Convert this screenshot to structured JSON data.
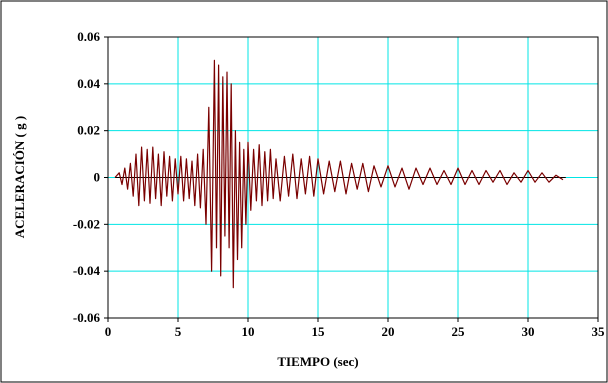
{
  "chart_data": {
    "type": "line",
    "title": "",
    "xlabel": "TIEMPO (sec)",
    "ylabel": "ACELERACIÓN ( g )",
    "xlim": [
      0,
      35
    ],
    "ylim": [
      -0.06,
      0.06
    ],
    "xticks": [
      0,
      5,
      10,
      15,
      20,
      25,
      30,
      35
    ],
    "yticks": [
      -0.06,
      -0.04,
      -0.02,
      0,
      0.02,
      0.04,
      0.06
    ],
    "xtick_labels": [
      "0",
      "5",
      "10",
      "15",
      "20",
      "25",
      "30",
      "35"
    ],
    "ytick_labels": [
      "-0.06",
      "-0.04",
      "-0.02",
      "0",
      "0.02",
      "0.04",
      "0.06"
    ],
    "grid": true,
    "legend": "none",
    "colors": {
      "series": "#7a0000",
      "grid": "#00e5e5",
      "zero_line": "#000000",
      "frame": "#000000"
    },
    "series": [
      {
        "x": [
          0.5,
          0.8,
          1.0,
          1.2,
          1.4,
          1.6,
          1.8,
          2.0,
          2.2,
          2.4,
          2.6,
          2.8,
          3.0,
          3.2,
          3.4,
          3.6,
          3.8,
          4.0,
          4.2,
          4.4,
          4.6,
          4.8,
          5.0,
          5.2,
          5.4,
          5.6,
          5.8,
          6.0,
          6.2,
          6.4,
          6.6,
          6.8,
          7.0,
          7.2,
          7.4,
          7.6,
          7.75,
          7.9,
          8.05,
          8.2,
          8.35,
          8.5,
          8.65,
          8.8,
          8.95,
          9.1,
          9.25,
          9.4,
          9.55,
          9.7,
          9.85,
          10.0,
          10.2,
          10.4,
          10.6,
          10.8,
          11.0,
          11.2,
          11.4,
          11.6,
          11.8,
          12.0,
          12.3,
          12.6,
          12.9,
          13.2,
          13.5,
          13.8,
          14.1,
          14.4,
          14.7,
          15.0,
          15.4,
          15.8,
          16.2,
          16.6,
          17.0,
          17.4,
          17.8,
          18.2,
          18.6,
          19.0,
          19.5,
          20.0,
          20.5,
          21.0,
          21.5,
          22.0,
          22.5,
          23.0,
          23.5,
          24.0,
          24.5,
          25.0,
          25.5,
          26.0,
          26.5,
          27.0,
          27.5,
          28.0,
          28.5,
          29.0,
          29.5,
          30.0,
          30.5,
          31.0,
          31.5,
          32.0,
          32.5
        ],
        "y": [
          0.0,
          0.002,
          -0.003,
          0.004,
          -0.005,
          0.006,
          -0.008,
          0.01,
          -0.012,
          0.013,
          -0.01,
          0.012,
          -0.011,
          0.013,
          -0.009,
          0.01,
          -0.012,
          0.011,
          -0.008,
          0.009,
          -0.01,
          0.008,
          -0.007,
          0.009,
          -0.01,
          0.008,
          -0.009,
          0.007,
          -0.012,
          0.01,
          -0.013,
          0.012,
          -0.02,
          0.03,
          -0.04,
          0.05,
          -0.03,
          0.048,
          -0.042,
          0.043,
          -0.025,
          0.045,
          -0.03,
          0.04,
          -0.047,
          0.02,
          -0.035,
          0.015,
          -0.03,
          0.012,
          -0.02,
          0.015,
          -0.014,
          0.012,
          -0.01,
          0.014,
          -0.012,
          0.011,
          -0.01,
          0.012,
          -0.009,
          0.008,
          -0.01,
          0.009,
          -0.008,
          0.01,
          -0.009,
          0.008,
          -0.007,
          0.009,
          -0.008,
          0.008,
          -0.007,
          0.007,
          -0.006,
          0.007,
          -0.007,
          0.006,
          -0.005,
          0.006,
          -0.006,
          0.005,
          -0.004,
          0.005,
          -0.004,
          0.004,
          -0.005,
          0.004,
          -0.003,
          0.004,
          -0.003,
          0.003,
          -0.003,
          0.004,
          -0.003,
          0.003,
          -0.003,
          0.003,
          -0.002,
          0.003,
          -0.003,
          0.002,
          -0.002,
          0.003,
          -0.002,
          0.002,
          -0.002,
          0.001,
          -0.001
        ]
      },
      {
        "x": [
          0.5,
          32.7
        ],
        "y": [
          0,
          0
        ]
      }
    ]
  }
}
